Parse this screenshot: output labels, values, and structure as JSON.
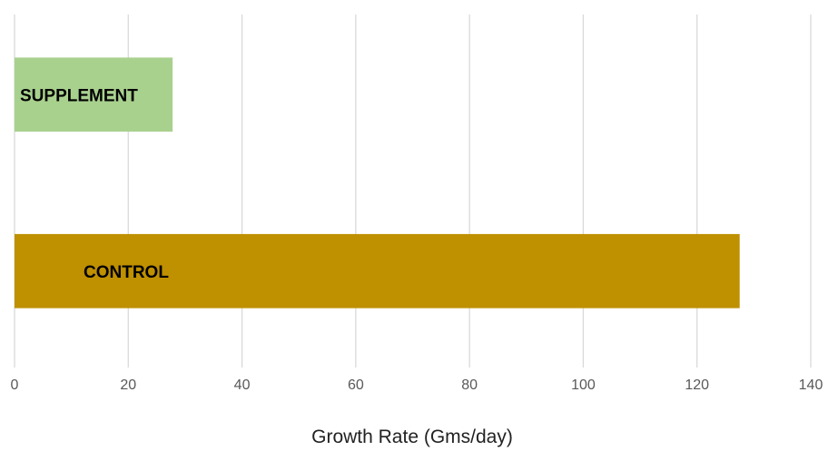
{
  "chart_data": {
    "type": "bar",
    "orientation": "horizontal",
    "categories": [
      "SUPPLEMENT",
      "CONTROL"
    ],
    "values": [
      27.8,
      127.5
    ],
    "colors": [
      "#a9d18e",
      "#bf9000"
    ],
    "xlabel": "Growth Rate (Gms/day)",
    "xlim": [
      0,
      140
    ],
    "xticks": [
      "0",
      "20",
      "40",
      "60",
      "80",
      "100",
      "120",
      "140"
    ],
    "grid": true,
    "legend": "none"
  }
}
